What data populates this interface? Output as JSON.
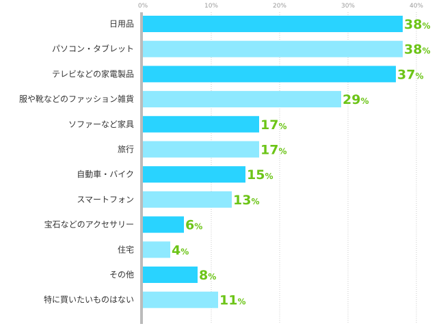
{
  "chart_data": {
    "type": "bar",
    "orientation": "horizontal",
    "categories": [
      "日用品",
      "パソコン・タブレット",
      "テレビなどの家電製品",
      "服や靴などのファッション雑貨",
      "ソファーなど家具",
      "旅行",
      "自動車・バイク",
      "スマートフォン",
      "宝石などのアクセサリー",
      "住宅",
      "その他",
      "特に買いたいものはない"
    ],
    "values": [
      38,
      38,
      37,
      29,
      17,
      17,
      15,
      13,
      6,
      4,
      8,
      11
    ],
    "value_suffix": "%",
    "xlim": [
      0,
      40
    ],
    "ticks": [
      0,
      10,
      20,
      30,
      40
    ],
    "tick_labels": [
      "0%",
      "10%",
      "20%",
      "30%",
      "40%"
    ],
    "grid": "dotted vertical",
    "colors": {
      "bar_odd": "#29d3ff",
      "bar_even": "#8ee9ff",
      "value_label": "#6cc417",
      "axis": "#bbbbbb"
    }
  }
}
